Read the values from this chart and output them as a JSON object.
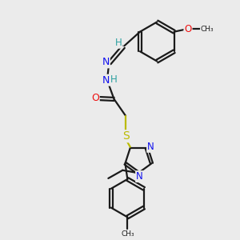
{
  "background_color": "#ebebeb",
  "atom_colors": {
    "C": "#1a1a1a",
    "H": "#2ca0a0",
    "N": "#1010ee",
    "O": "#ee1010",
    "S": "#bbbb00"
  },
  "bond_color": "#1a1a1a",
  "bond_width": 1.6,
  "figsize": [
    3.0,
    3.0
  ],
  "dpi": 100,
  "xlim": [
    0,
    10
  ],
  "ylim": [
    0,
    10
  ]
}
